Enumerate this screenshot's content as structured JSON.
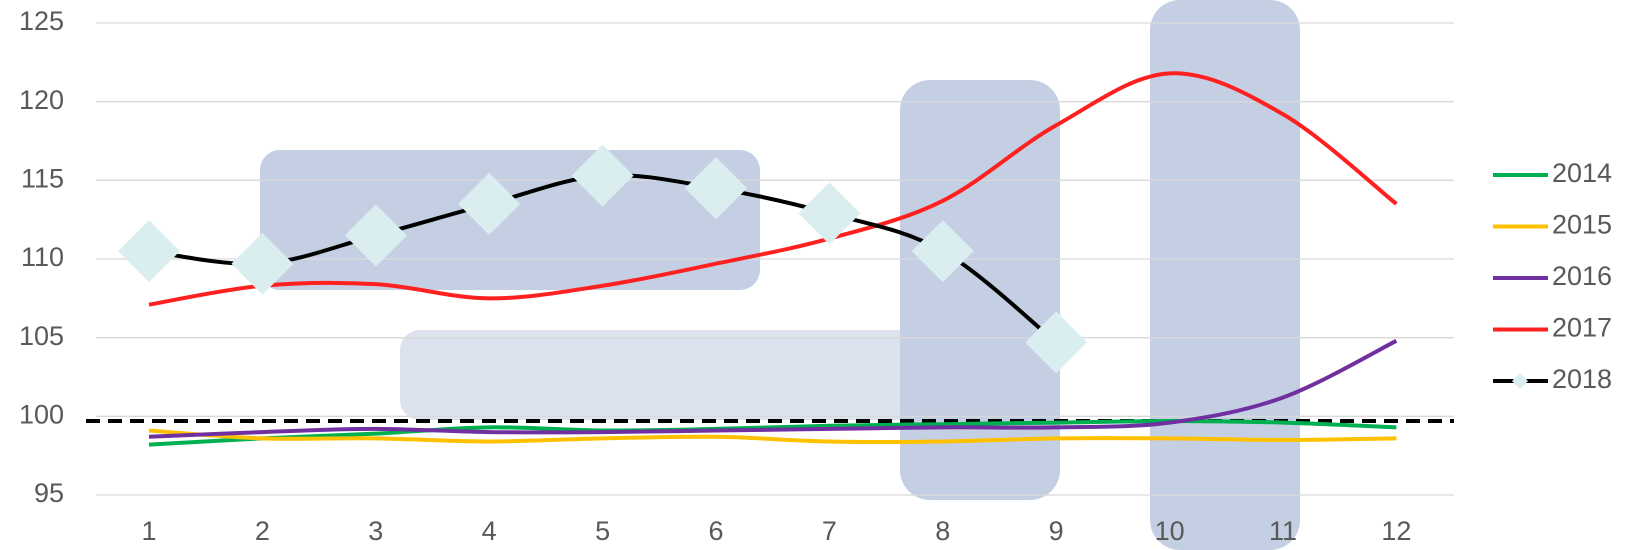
{
  "chart_data": {
    "type": "line",
    "categories": [
      "1",
      "2",
      "3",
      "4",
      "5",
      "6",
      "7",
      "8",
      "9",
      "10",
      "11",
      "12"
    ],
    "series": [
      {
        "name": "2014",
        "color": "#00b050",
        "values": [
          98.2,
          98.6,
          98.9,
          99.3,
          99.1,
          99.2,
          99.4,
          99.5,
          99.6,
          99.7,
          99.6,
          99.3
        ]
      },
      {
        "name": "2015",
        "color": "#ffc000",
        "values": [
          99.1,
          98.6,
          98.6,
          98.4,
          98.6,
          98.7,
          98.4,
          98.4,
          98.6,
          98.6,
          98.5,
          98.6
        ]
      },
      {
        "name": "2016",
        "color": "#7030a0",
        "values": [
          98.7,
          99.0,
          99.2,
          99.0,
          99.0,
          99.1,
          99.2,
          99.3,
          99.3,
          99.6,
          101.2,
          104.8
        ]
      },
      {
        "name": "2017",
        "color": "#ff2020",
        "values": [
          107.1,
          108.3,
          108.4,
          107.5,
          108.3,
          109.7,
          111.3,
          113.7,
          118.5,
          121.8,
          119.2,
          113.5
        ]
      },
      {
        "name": "2018",
        "color": "#000000",
        "marker_color": "#daeef0",
        "values": [
          110.5,
          109.7,
          111.5,
          113.5,
          115.3,
          114.5,
          112.9,
          110.5,
          104.7,
          null,
          null,
          null
        ]
      }
    ],
    "reference_line": 99.7,
    "ylim": [
      95,
      125
    ],
    "yticks": [
      95,
      100,
      105,
      110,
      115,
      120,
      125
    ],
    "grid": true,
    "legend": "right"
  }
}
